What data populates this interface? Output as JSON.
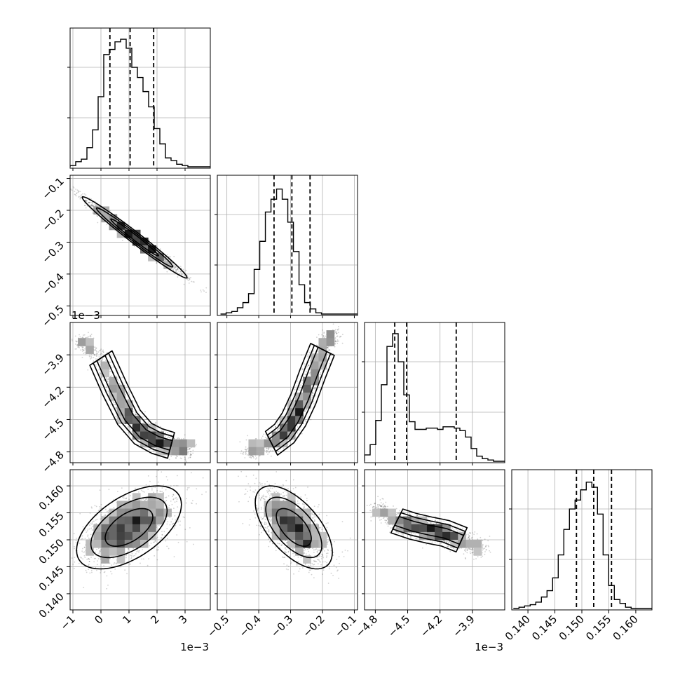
{
  "chart_data": {
    "type": "corner",
    "title": "",
    "params": [
      {
        "index": 0,
        "range": [
          -1.1,
          3.9
        ],
        "ticks": [
          -1,
          0,
          1,
          2,
          3
        ],
        "tick_labels": [
          "−1",
          "0",
          "1",
          "2",
          "3"
        ],
        "offset_label": "1e−3"
      },
      {
        "index": 1,
        "range": [
          -0.53,
          -0.09
        ],
        "ticks": [
          -0.5,
          -0.4,
          -0.3,
          -0.2,
          -0.1
        ],
        "tick_labels": [
          "−0.5",
          "−0.4",
          "−0.3",
          "−0.2",
          "−0.1"
        ],
        "offset_label": ""
      },
      {
        "index": 2,
        "range": [
          -4.9,
          -3.6
        ],
        "ticks": [
          -4.8,
          -4.5,
          -4.2,
          -3.9
        ],
        "tick_labels": [
          "−4.8",
          "−4.5",
          "−4.2",
          "−3.9"
        ],
        "offset_label": "1e−3"
      },
      {
        "index": 3,
        "range": [
          0.137,
          0.163
        ],
        "ticks": [
          0.14,
          0.145,
          0.15,
          0.155,
          0.16
        ],
        "tick_labels": [
          "0.140",
          "0.145",
          "0.150",
          "0.155",
          "0.160"
        ],
        "offset_label": ""
      }
    ],
    "marginals": [
      {
        "param": 0,
        "bin_edges_start": -1.1,
        "bin_width": 0.2,
        "counts": [
          0.01,
          0.04,
          0.06,
          0.15,
          0.29,
          0.55,
          0.88,
          0.92,
          0.98,
          1.0,
          0.93,
          0.78,
          0.7,
          0.59,
          0.47,
          0.3,
          0.18,
          0.07,
          0.05,
          0.02,
          0.01,
          0.0,
          0.0,
          0.0,
          0.0
        ],
        "quantiles": [
          0.32,
          1.04,
          1.88
        ]
      },
      {
        "param": 1,
        "bin_edges_start": -0.52,
        "bin_width": 0.0176,
        "counts": [
          0.0,
          0.01,
          0.02,
          0.05,
          0.09,
          0.16,
          0.35,
          0.57,
          0.8,
          0.9,
          0.98,
          0.9,
          0.72,
          0.49,
          0.23,
          0.09,
          0.04,
          0.01,
          0.0,
          0.0,
          0.0,
          0.0,
          0.0,
          0.0,
          0.0
        ],
        "quantiles": [
          -0.352,
          -0.296,
          -0.239
        ]
      },
      {
        "param": 2,
        "bin_edges_start": -4.9,
        "bin_width": 0.052,
        "counts": [
          0.05,
          0.13,
          0.32,
          0.6,
          0.9,
          1.0,
          0.78,
          0.52,
          0.31,
          0.25,
          0.25,
          0.26,
          0.26,
          0.25,
          0.27,
          0.27,
          0.26,
          0.24,
          0.19,
          0.1,
          0.04,
          0.02,
          0.01,
          0.0,
          0.0
        ],
        "quantiles": [
          -4.62,
          -4.51,
          -4.05
        ]
      },
      {
        "param": 3,
        "bin_edges_start": 0.1373,
        "bin_width": 0.00104,
        "counts": [
          0.0,
          0.01,
          0.02,
          0.03,
          0.05,
          0.09,
          0.14,
          0.24,
          0.42,
          0.62,
          0.78,
          0.85,
          0.93,
          0.99,
          0.95,
          0.74,
          0.42,
          0.18,
          0.07,
          0.04,
          0.01,
          0.0,
          0.0,
          0.0,
          0.0
        ],
        "quantiles": [
          0.149,
          0.1522,
          0.1555
        ]
      }
    ],
    "joint_pairs": [
      {
        "x_param": 0,
        "y_param": 1,
        "mean": [
          1.2,
          -0.285
        ],
        "sd": [
          0.85,
          0.058
        ],
        "corr": -0.985
      },
      {
        "x_param": 0,
        "y_param": 2,
        "curve": "banana",
        "ridge_x": [
          -0.6,
          0.0,
          0.5,
          1.0,
          1.5,
          2.0,
          2.5,
          3.0
        ],
        "ridge_y": [
          -3.78,
          -3.93,
          -4.22,
          -4.48,
          -4.63,
          -4.7,
          -4.74,
          -4.77
        ]
      },
      {
        "x_param": 1,
        "y_param": 2,
        "curve": "banana",
        "ridge_x": [
          -0.42,
          -0.36,
          -0.32,
          -0.29,
          -0.26,
          -0.23,
          -0.2,
          -0.17
        ],
        "ridge_y": [
          -4.78,
          -4.72,
          -4.63,
          -4.5,
          -4.31,
          -4.07,
          -3.85,
          -3.72
        ]
      },
      {
        "x_param": 0,
        "y_param": 3,
        "mean": [
          1.0,
          0.1523
        ],
        "sd": [
          0.85,
          0.0035
        ],
        "corr": 0.55
      },
      {
        "x_param": 1,
        "y_param": 3,
        "mean": [
          -0.29,
          0.1523
        ],
        "sd": [
          0.055,
          0.0035
        ],
        "corr": -0.6
      },
      {
        "x_param": 2,
        "y_param": 3,
        "curve": "banana",
        "ridge_x": [
          -4.75,
          -4.6,
          -4.45,
          -4.3,
          -4.15,
          -4.0,
          -3.85
        ],
        "ridge_y": [
          0.1555,
          0.1535,
          0.1525,
          0.1518,
          0.1512,
          0.15,
          0.1485
        ]
      }
    ],
    "contour_levels": 4,
    "grid": true
  }
}
